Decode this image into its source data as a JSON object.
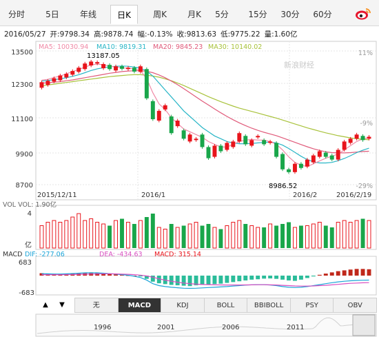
{
  "tabs": [
    "分时",
    "5日",
    "年线",
    "日K",
    "周K",
    "月K",
    "5分",
    "15分",
    "30分",
    "60分"
  ],
  "active_tab": 3,
  "info": {
    "date": "2016/05/27",
    "open": "开:9798.34",
    "high": "高:9878.74",
    "change": "幅:-0.13%",
    "close": "收:9813.63",
    "low": "低:9775.22",
    "volume": "量:1.60亿"
  },
  "legend": {
    "ma5": "MA5: 10030.94",
    "ma10": "MA10: 9819.31",
    "ma20": "MA20: 9845.23",
    "ma30": "MA30: 10140.02"
  },
  "colors": {
    "up": "#e8141b",
    "down": "#19a64a",
    "ma5": "#f08aa6",
    "ma10": "#27b5c6",
    "ma20": "#e05a7a",
    "ma30": "#a8c23a",
    "dif": "#1aa4d8",
    "dea": "#d84ec0"
  },
  "watermark": "新浪财经",
  "chart_data": {
    "type": "candlestick",
    "y_ticks": [
      "13500",
      "12300",
      "11100",
      "9900",
      "8700"
    ],
    "pct_ticks": [
      "11%",
      "-9%",
      "-29%"
    ],
    "x_ticks": [
      "2015/12/11",
      "2016/1",
      "2016/2",
      "2016/2/19"
    ],
    "ylim": [
      8700,
      13500
    ],
    "max_label": "13187.05",
    "min_label": "8986.52",
    "candles": [
      {
        "o": 12180,
        "c": 12380
      },
      {
        "o": 12280,
        "c": 12430
      },
      {
        "o": 12400,
        "c": 12520
      },
      {
        "o": 12450,
        "c": 12620
      },
      {
        "o": 12550,
        "c": 12680
      },
      {
        "o": 12650,
        "c": 12780
      },
      {
        "o": 12750,
        "c": 12900
      },
      {
        "o": 12850,
        "c": 13050
      },
      {
        "o": 12980,
        "c": 13120
      },
      {
        "o": 13050,
        "c": 13100
      },
      {
        "o": 12880,
        "c": 13030
      },
      {
        "o": 13000,
        "c": 12850
      },
      {
        "o": 12800,
        "c": 12950
      },
      {
        "o": 12950,
        "c": 12860
      },
      {
        "o": 12850,
        "c": 12900
      },
      {
        "o": 12900,
        "c": 12760
      },
      {
        "o": 12750,
        "c": 12950
      },
      {
        "o": 12850,
        "c": 11800
      },
      {
        "o": 11700,
        "c": 11050
      },
      {
        "o": 11000,
        "c": 11350
      },
      {
        "o": 11400,
        "c": 11550
      },
      {
        "o": 11150,
        "c": 10550
      },
      {
        "o": 10800,
        "c": 11000
      },
      {
        "o": 10650,
        "c": 10350
      },
      {
        "o": 10250,
        "c": 10500
      },
      {
        "o": 10300,
        "c": 10350
      },
      {
        "o": 10500,
        "c": 10050
      },
      {
        "o": 10050,
        "c": 9650
      },
      {
        "o": 9700,
        "c": 10100
      },
      {
        "o": 10100,
        "c": 9900
      },
      {
        "o": 9950,
        "c": 10200
      },
      {
        "o": 10050,
        "c": 10250
      },
      {
        "o": 10250,
        "c": 10550
      },
      {
        "o": 10450,
        "c": 10150
      },
      {
        "o": 10100,
        "c": 10300
      },
      {
        "o": 10400,
        "c": 10450
      },
      {
        "o": 10300,
        "c": 10150
      },
      {
        "o": 10200,
        "c": 10250
      },
      {
        "o": 10200,
        "c": 9700
      },
      {
        "o": 9800,
        "c": 9250
      },
      {
        "o": 9250,
        "c": 9150
      },
      {
        "o": 9150,
        "c": 9450
      },
      {
        "o": 9450,
        "c": 9300
      },
      {
        "o": 9350,
        "c": 9600
      },
      {
        "o": 9500,
        "c": 9750
      },
      {
        "o": 9700,
        "c": 9900
      },
      {
        "o": 9850,
        "c": 9700
      },
      {
        "o": 9750,
        "c": 9600
      },
      {
        "o": 9600,
        "c": 9950
      },
      {
        "o": 9950,
        "c": 10250
      },
      {
        "o": 10200,
        "c": 10350
      },
      {
        "o": 10350,
        "c": 10500
      },
      {
        "o": 10450,
        "c": 10300
      },
      {
        "o": 10350,
        "c": 10420
      }
    ],
    "ma5": [
      12450,
      12480,
      12550,
      12600,
      12680,
      12760,
      12840,
      12920,
      13000,
      13030,
      13000,
      12960,
      12920,
      12900,
      12880,
      12860,
      12800,
      12500,
      12000,
      11600,
      11400,
      11100,
      10900,
      10700,
      10600,
      10500,
      10400,
      10250,
      10150,
      10050,
      10050,
      10150,
      10250,
      10300,
      10320,
      10300,
      10300,
      10250,
      10150,
      9950,
      9700,
      9500,
      9400,
      9350,
      9450,
      9550,
      9650,
      9720,
      9800,
      9950,
      10100,
      10250,
      10350,
      10380
    ],
    "ma10": [
      12420,
      12440,
      12470,
      12500,
      12540,
      12590,
      12650,
      12720,
      12800,
      12860,
      12900,
      12930,
      12950,
      12960,
      12950,
      12920,
      12880,
      12780,
      12600,
      12350,
      12100,
      11850,
      11600,
      11350,
      11150,
      10950,
      10750,
      10600,
      10450,
      10350,
      10250,
      10200,
      10170,
      10170,
      10180,
      10200,
      10220,
      10230,
      10200,
      10120,
      10000,
      9860,
      9720,
      9600,
      9520,
      9480,
      9480,
      9500,
      9560,
      9640,
      9740,
      9850,
      9940,
      10010
    ],
    "ma20": [
      12350,
      12360,
      12380,
      12400,
      12430,
      12460,
      12500,
      12540,
      12580,
      12620,
      12660,
      12700,
      12730,
      12760,
      12780,
      12790,
      12790,
      12770,
      12720,
      12640,
      12540,
      12420,
      12290,
      12150,
      12000,
      11850,
      11700,
      11560,
      11420,
      11280,
      11150,
      11030,
      10920,
      10820,
      10730,
      10650,
      10580,
      10520,
      10460,
      10380,
      10300,
      10220,
      10140,
      10060,
      9990,
      9930,
      9880,
      9850,
      9840,
      9840,
      9850,
      9870,
      9890,
      9900
    ],
    "ma30": [
      12250,
      12280,
      12310,
      12340,
      12370,
      12400,
      12430,
      12460,
      12490,
      12520,
      12550,
      12580,
      12600,
      12620,
      12640,
      12650,
      12650,
      12630,
      12600,
      12560,
      12500,
      12430,
      12350,
      12260,
      12160,
      12060,
      11960,
      11860,
      11770,
      11680,
      11600,
      11520,
      11450,
      11390,
      11330,
      11270,
      11210,
      11150,
      11090,
      11020,
      10950,
      10880,
      10810,
      10740,
      10680,
      10620,
      10560,
      10510,
      10460,
      10420,
      10380,
      10350,
      10330,
      10310
    ],
    "vol_ticks": [
      "4",
      "亿"
    ],
    "volume": [
      2.6,
      3.0,
      3.2,
      3.0,
      3.2,
      3.6,
      4.0,
      3.2,
      3.4,
      3.0,
      2.8,
      2.6,
      3.2,
      3.4,
      3.0,
      2.8,
      3.2,
      3.6,
      4.0,
      2.4,
      2.2,
      2.8,
      2.4,
      2.6,
      2.8,
      3.0,
      2.6,
      2.8,
      2.4,
      2.2,
      2.6,
      3.0,
      3.2,
      2.8,
      2.6,
      2.4,
      2.4,
      2.8,
      2.6,
      2.8,
      3.0,
      2.4,
      2.6,
      2.6,
      2.8,
      3.0,
      2.6,
      2.4,
      3.0,
      3.2,
      3.0,
      3.2,
      3.4,
      3.2
    ],
    "vol_legend": "VOL  VOL: 1.90亿",
    "macd_ticks": [
      "683",
      "-683"
    ],
    "macd_legend": {
      "title": "MACD",
      "dif": "DIF: -277.06",
      "dea": "DEA: -434.63",
      "macd": "MACD: 315.14"
    },
    "macd": [
      120,
      100,
      90,
      80,
      80,
      90,
      100,
      120,
      140,
      130,
      110,
      80,
      60,
      40,
      20,
      0,
      -40,
      -160,
      -300,
      -380,
      -420,
      -460,
      -480,
      -500,
      -520,
      -480,
      -460,
      -440,
      -420,
      -400,
      -360,
      -320,
      -280,
      -240,
      -200,
      -180,
      -150,
      -140,
      -160,
      -200,
      -240,
      -260,
      -200,
      -120,
      -40,
      40,
      100,
      160,
      220,
      260,
      300,
      330,
      330,
      315
    ],
    "dif": [
      120,
      110,
      100,
      100,
      110,
      130,
      150,
      170,
      180,
      170,
      150,
      120,
      90,
      60,
      20,
      -40,
      -120,
      -280,
      -500,
      -620,
      -680,
      -720,
      -750,
      -780,
      -790,
      -780,
      -760,
      -740,
      -720,
      -700,
      -680,
      -650,
      -620,
      -590,
      -570,
      -560,
      -560,
      -580,
      -620,
      -680,
      -720,
      -740,
      -720,
      -680,
      -620,
      -560,
      -500,
      -440,
      -390,
      -350,
      -320,
      -300,
      -285,
      -277
    ],
    "dea": [
      60,
      60,
      60,
      60,
      65,
      70,
      80,
      90,
      100,
      105,
      110,
      110,
      105,
      95,
      80,
      60,
      30,
      -20,
      -100,
      -200,
      -280,
      -350,
      -410,
      -460,
      -500,
      -530,
      -550,
      -560,
      -570,
      -575,
      -580,
      -580,
      -580,
      -575,
      -570,
      -565,
      -565,
      -570,
      -580,
      -600,
      -620,
      -640,
      -650,
      -650,
      -640,
      -620,
      -600,
      -570,
      -540,
      -510,
      -480,
      -460,
      -445,
      -435
    ],
    "macd_ylim": [
      -683,
      683
    ]
  },
  "indicators": [
    "无",
    "MACD",
    "KDJ",
    "BOLL",
    "BBIBOLL",
    "PSY",
    "OBV"
  ],
  "active_indicator": 1,
  "nav_arrows": {
    "left": "▲",
    "right": "▼"
  },
  "overview": {
    "years": [
      "1996",
      "2001",
      "2006",
      "2011"
    ]
  }
}
